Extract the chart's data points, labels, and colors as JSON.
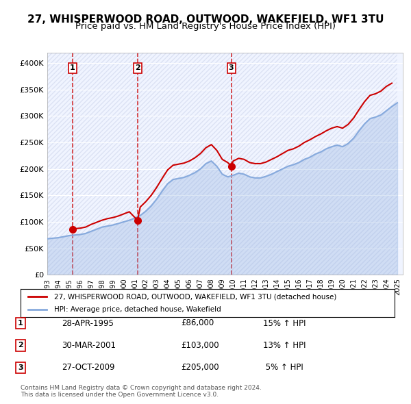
{
  "title": "27, WHISPERWOOD ROAD, OUTWOOD, WAKEFIELD, WF1 3TU",
  "subtitle": "Price paid vs. HM Land Registry's House Price Index (HPI)",
  "title_fontsize": 11,
  "subtitle_fontsize": 9.5,
  "bg_color": "#ffffff",
  "plot_bg_color": "#f0f4ff",
  "grid_color": "#ffffff",
  "hatch_color": "#c8d0e8",
  "sale_color": "#cc0000",
  "hpi_color": "#87aadd",
  "ylabel": "",
  "ylim": [
    0,
    420000
  ],
  "yticks": [
    0,
    50000,
    100000,
    150000,
    200000,
    250000,
    300000,
    350000,
    400000
  ],
  "ytick_labels": [
    "£0",
    "£50K",
    "£100K",
    "£150K",
    "£200K",
    "£250K",
    "£300K",
    "£350K",
    "£400K"
  ],
  "sales": [
    {
      "date_num": 1995.32,
      "price": 86000,
      "label": "1"
    },
    {
      "date_num": 2001.25,
      "price": 103000,
      "label": "2"
    },
    {
      "date_num": 2009.82,
      "price": 205000,
      "label": "3"
    }
  ],
  "sale_dates": [
    "28-APR-1995",
    "30-MAR-2001",
    "27-OCT-2009"
  ],
  "sale_prices": [
    "£86,000",
    "£103,000",
    "£205,000"
  ],
  "sale_hpi": [
    "15% ↑ HPI",
    "13% ↑ HPI",
    " 5% ↑ HPI"
  ],
  "legend_sale_label": "27, WHISPERWOOD ROAD, OUTWOOD, WAKEFIELD, WF1 3TU (detached house)",
  "legend_hpi_label": "HPI: Average price, detached house, Wakefield",
  "footer": "Contains HM Land Registry data © Crown copyright and database right 2024.\nThis data is licensed under the Open Government Licence v3.0.",
  "hpi_data": {
    "years": [
      1993,
      1993.5,
      1994,
      1994.5,
      1995,
      1995.5,
      1996,
      1996.5,
      1997,
      1997.5,
      1998,
      1998.5,
      1999,
      1999.5,
      2000,
      2000.5,
      2001,
      2001.5,
      2002,
      2002.5,
      2003,
      2003.5,
      2004,
      2004.5,
      2005,
      2005.5,
      2006,
      2006.5,
      2007,
      2007.5,
      2008,
      2008.5,
      2009,
      2009.5,
      2010,
      2010.5,
      2011,
      2011.5,
      2012,
      2012.5,
      2013,
      2013.5,
      2014,
      2014.5,
      2015,
      2015.5,
      2016,
      2016.5,
      2017,
      2017.5,
      2018,
      2018.5,
      2019,
      2019.5,
      2020,
      2020.5,
      2021,
      2021.5,
      2022,
      2022.5,
      2023,
      2023.5,
      2024,
      2024.5,
      2025
    ],
    "values": [
      68000,
      69000,
      70000,
      72000,
      74000,
      75000,
      76000,
      78000,
      82000,
      86000,
      90000,
      92000,
      94000,
      97000,
      100000,
      103000,
      107000,
      112000,
      120000,
      130000,
      143000,
      158000,
      172000,
      180000,
      182000,
      184000,
      188000,
      193000,
      200000,
      210000,
      215000,
      205000,
      190000,
      185000,
      188000,
      192000,
      190000,
      185000,
      183000,
      183000,
      186000,
      190000,
      195000,
      200000,
      205000,
      208000,
      212000,
      218000,
      222000,
      228000,
      232000,
      238000,
      242000,
      245000,
      242000,
      248000,
      258000,
      272000,
      285000,
      295000,
      298000,
      302000,
      310000,
      318000,
      325000
    ]
  },
  "sale_line_data": {
    "x": [
      1995.32,
      1995.5,
      1996,
      1996.5,
      1997,
      1997.5,
      1998,
      1998.5,
      1999,
      1999.5,
      2000,
      2000.5,
      2001.25,
      2001.5,
      2002,
      2002.5,
      2003,
      2003.5,
      2004,
      2004.5,
      2005,
      2005.5,
      2006,
      2006.5,
      2007,
      2007.5,
      2008,
      2008.5,
      2009,
      2009.5,
      2009.82,
      2010,
      2010.5,
      2011,
      2011.5,
      2012,
      2012.5,
      2013,
      2013.5,
      2014,
      2014.5,
      2015,
      2015.5,
      2016,
      2016.5,
      2017,
      2017.5,
      2018,
      2018.5,
      2019,
      2019.5,
      2020,
      2020.5,
      2021,
      2021.5,
      2022,
      2022.5,
      2023,
      2023.5,
      2024,
      2024.5
    ],
    "values": [
      86000,
      87000,
      88000,
      90000,
      95000,
      99000,
      103000,
      106000,
      108000,
      111000,
      115000,
      119000,
      103000,
      128000,
      138000,
      150000,
      165000,
      182000,
      198000,
      207000,
      209000,
      211000,
      215000,
      221000,
      229000,
      240000,
      246000,
      235000,
      218000,
      212000,
      205000,
      215000,
      220000,
      218000,
      212000,
      210000,
      210000,
      213000,
      218000,
      223000,
      229000,
      235000,
      238000,
      243000,
      250000,
      255000,
      261000,
      266000,
      272000,
      277000,
      280000,
      277000,
      284000,
      296000,
      312000,
      327000,
      339000,
      342000,
      347000,
      356000,
      362000
    ]
  }
}
